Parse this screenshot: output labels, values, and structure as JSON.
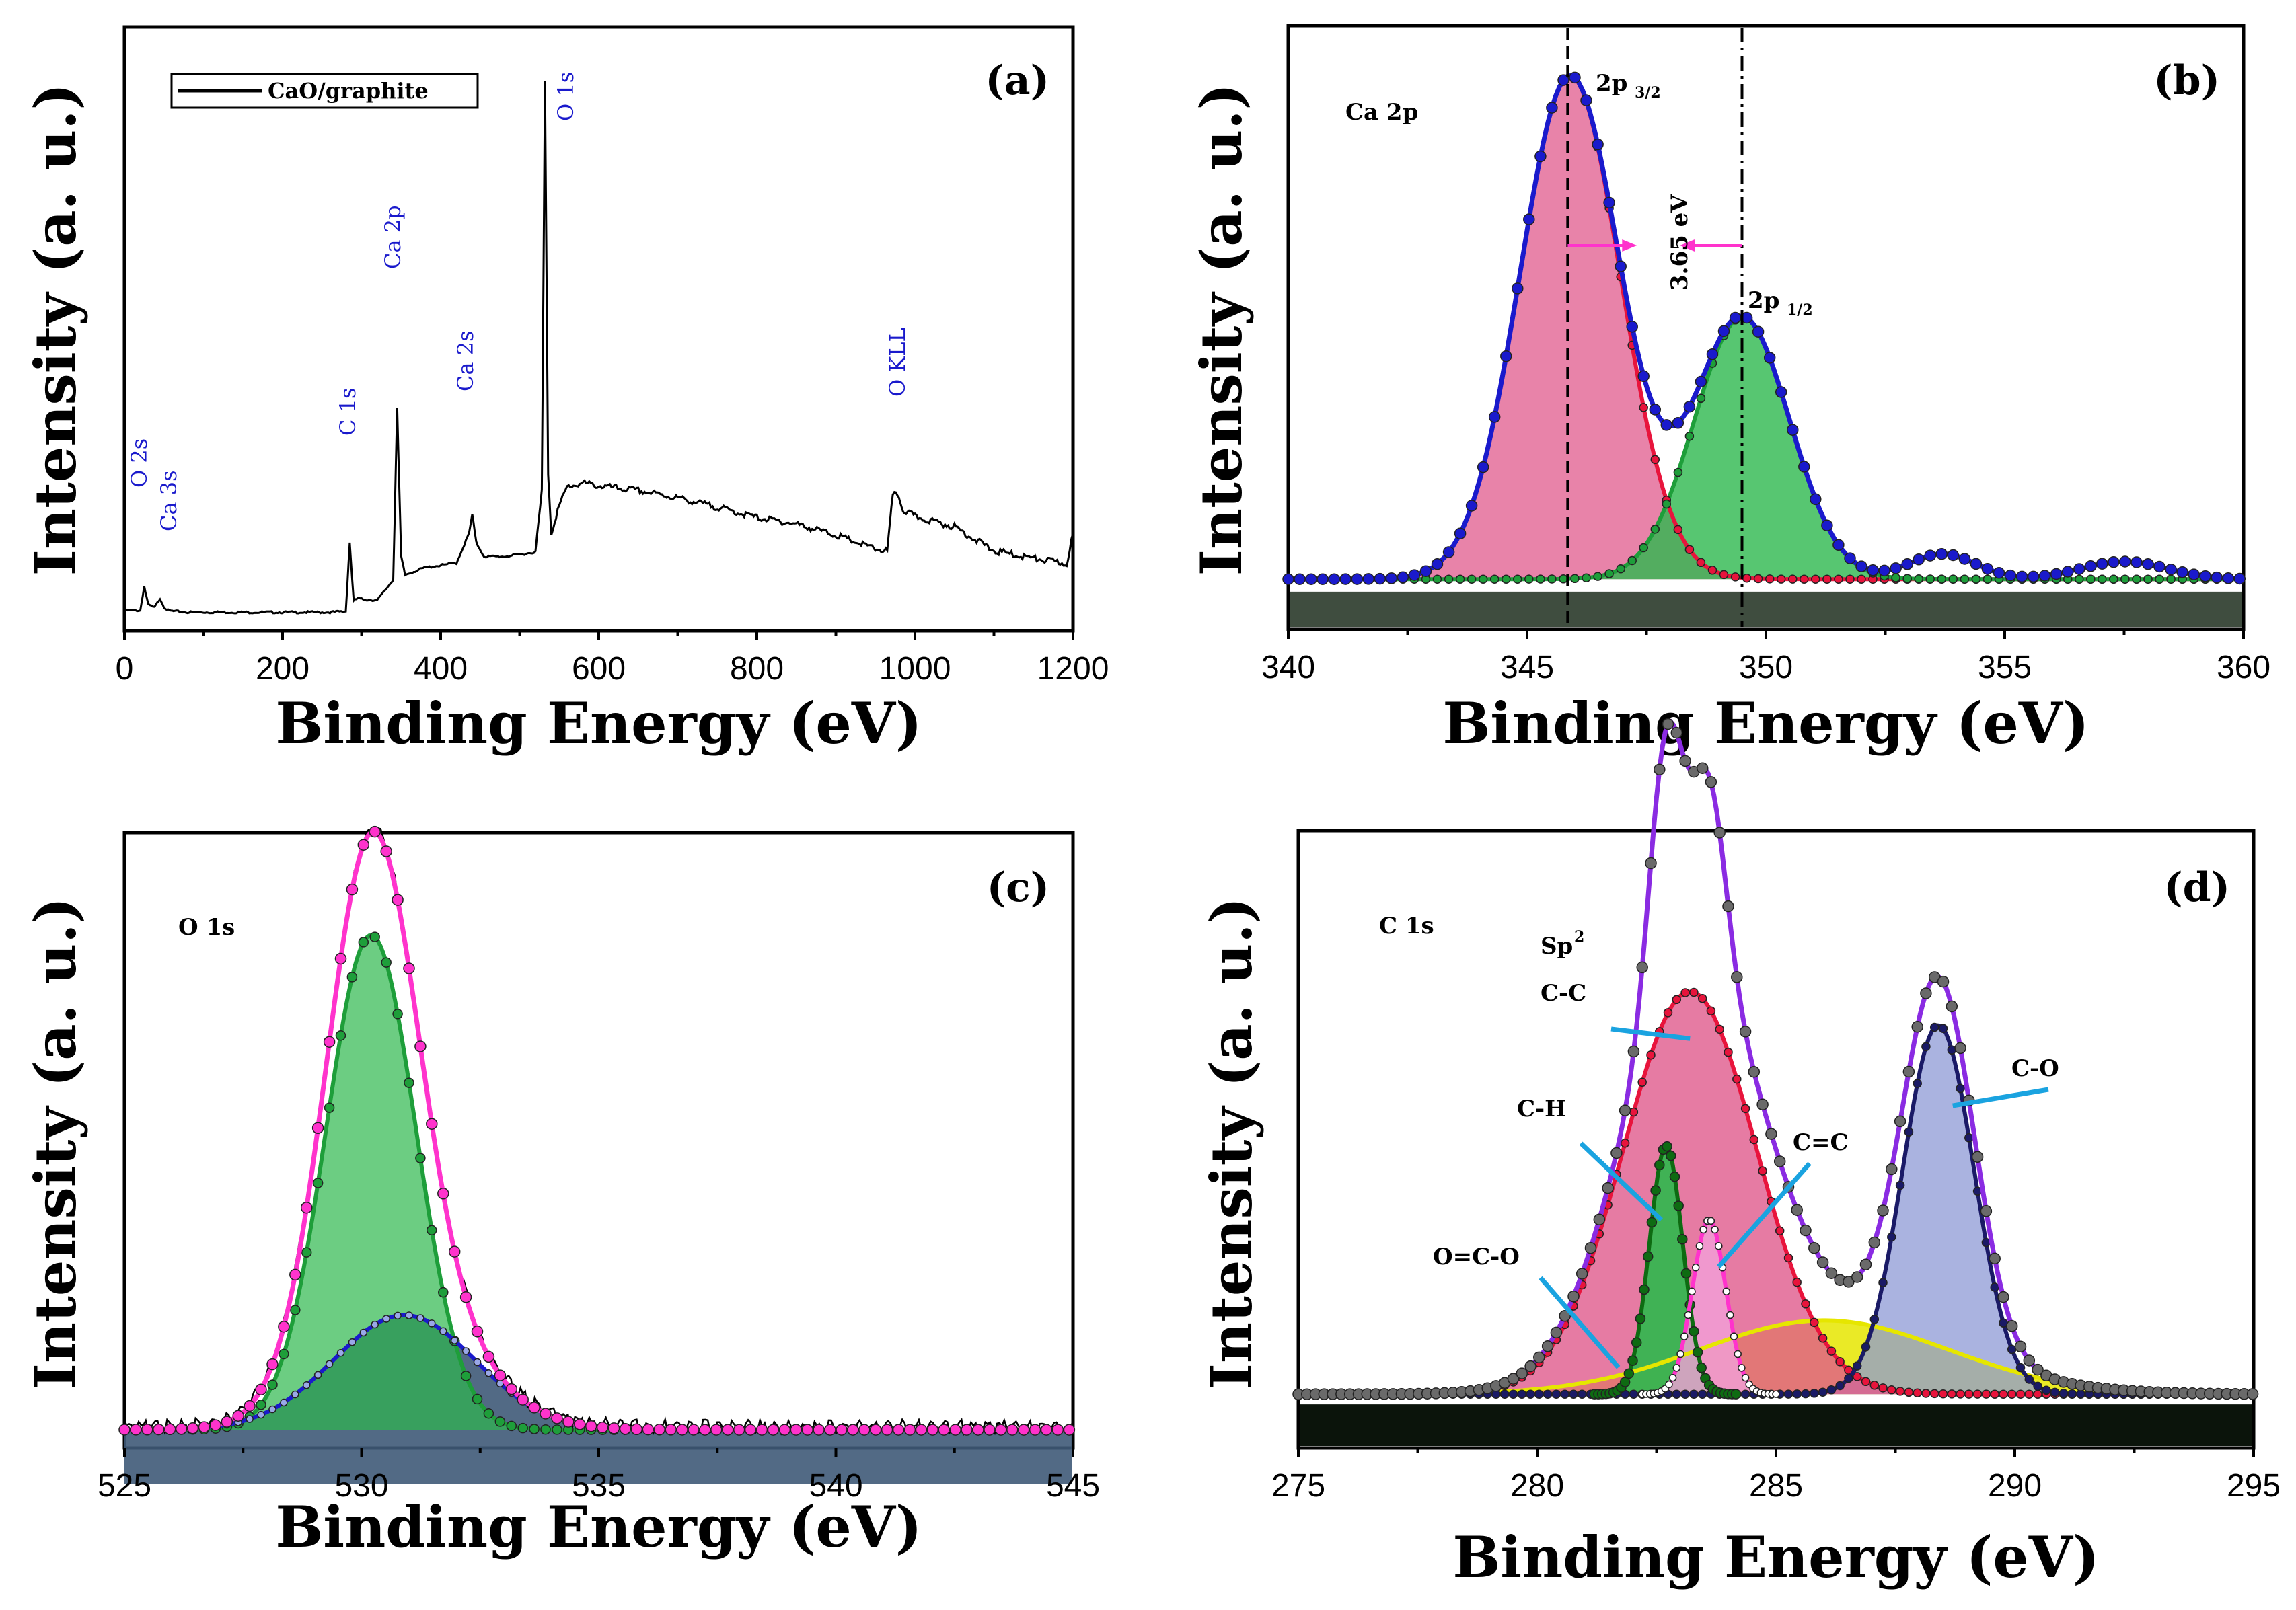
{
  "panels": {
    "a": {
      "label": "(a)",
      "ylabel": "Intensity (a. u.)",
      "xlabel": "Binding Energy (eV)",
      "legend": "CaO/graphite",
      "peaks": [
        "O 2s",
        "Ca 3s",
        "C 1s",
        "Ca 2p",
        "Ca 2s",
        "O 1s",
        "O KLL"
      ]
    },
    "b": {
      "label": "(b)",
      "ylabel": "Intensity (a. u.)",
      "xlabel": "Binding Energy (eV)",
      "region": "Ca 2p",
      "p32": "2p",
      "p32_sub": "3/2",
      "p12": "2p",
      "p12_sub": "1/2",
      "splitting": "3.65 eV"
    },
    "c": {
      "label": "(c)",
      "ylabel": "Intensity (a. u.)",
      "xlabel": "Binding Energy (eV)",
      "region": "O 1s"
    },
    "d": {
      "label": "(d)",
      "ylabel": "Intensity (a. u.)",
      "xlabel": "Binding Energy (eV)",
      "region": "C 1s",
      "sp2_a": "Sp",
      "sp2_sup": "2",
      "sp2_b": "C-C",
      "ch": "C-H",
      "cc": "C=C",
      "oco": "O=C-O",
      "co": "C-O"
    }
  },
  "colors": {
    "black": "#000000",
    "blue": "#1a1acc",
    "red": "#e8143c",
    "pink_fill": "#e05a8c",
    "green": "#1e9e3a",
    "green_fill": "#2db84d",
    "magenta": "#ff33cc",
    "purple": "#8a2be2",
    "navy": "#1a1a66",
    "navy_fill": "#8e9ad6",
    "yellow": "#e6e600",
    "darkgreen": "#0e6b12",
    "slate_fill": "#3f5a78",
    "dark_fill": "#2a3a2a",
    "cyan": "#1aa3e0"
  },
  "chart_data": [
    {
      "id": "a",
      "type": "line",
      "title": "(a)",
      "xlabel": "Binding Energy (eV)",
      "ylabel": "Intensity (a. u.)",
      "xlim": [
        0,
        1200
      ],
      "xticks": [
        0,
        200,
        400,
        600,
        800,
        1000,
        1200
      ],
      "series": [
        {
          "name": "CaO/graphite",
          "x": [
            0,
            20,
            25,
            30,
            38,
            45,
            50,
            55,
            62,
            80,
            120,
            200,
            260,
            280,
            285,
            290,
            295,
            300,
            320,
            340,
            345,
            350,
            355,
            360,
            380,
            420,
            436,
            440,
            445,
            455,
            480,
            500,
            520,
            528,
            532,
            536,
            540,
            548,
            560,
            580,
            600,
            650,
            700,
            750,
            800,
            850,
            900,
            950,
            965,
            972,
            978,
            985,
            1000,
            1050,
            1100,
            1150,
            1180,
            1192,
            1200
          ],
          "y": [
            2.2,
            2.2,
            4.8,
            2.8,
            2.5,
            3.5,
            2.6,
            2.2,
            2.1,
            2.0,
            2.0,
            2.0,
            2.0,
            2.1,
            9.5,
            3.2,
            3.5,
            3.4,
            3.3,
            5.5,
            24,
            8,
            6,
            6.2,
            6.8,
            7.3,
            10.5,
            12.5,
            9.5,
            8.0,
            8.0,
            8.2,
            8.5,
            15,
            59,
            17,
            10.5,
            13,
            15.5,
            15.9,
            15.6,
            15.1,
            14.3,
            13.3,
            12.2,
            11.5,
            10.3,
            8.8,
            8.6,
            14.5,
            14.8,
            13.0,
            12.3,
            11.2,
            8.6,
            7.8,
            7.4,
            7.2,
            10.5
          ]
        }
      ],
      "annotations": [
        "O 2s",
        "Ca 3s",
        "C 1s",
        "Ca 2p",
        "Ca 2s",
        "O 1s",
        "O KLL"
      ]
    },
    {
      "id": "b",
      "type": "area",
      "title": "(b)",
      "xlabel": "Binding Energy (eV)",
      "ylabel": "Intensity (a. u.)",
      "xlim": [
        340,
        360
      ],
      "xticks": [
        340,
        345,
        350,
        355,
        360
      ],
      "baseline": 1.0,
      "components": [
        {
          "name": "2p3/2",
          "center": 345.9,
          "height": 10.0,
          "sigma": 1.05
        },
        {
          "name": "2p1/2",
          "center": 349.5,
          "height": 5.2,
          "sigma": 1.0
        },
        {
          "name": "satellite 1",
          "center": 353.7,
          "height": 0.5,
          "sigma": 0.7
        },
        {
          "name": "satellite 2",
          "center": 357.5,
          "height": 0.35,
          "sigma": 0.9
        }
      ],
      "reference_lines": [
        345.85,
        349.5
      ],
      "splitting_eV": 3.65
    },
    {
      "id": "c",
      "type": "area",
      "title": "(c)",
      "xlabel": "Binding Energy (eV)",
      "ylabel": "Intensity (a. u.)",
      "xlim": [
        525,
        545
      ],
      "xticks": [
        525,
        530,
        535,
        540,
        545
      ],
      "baseline": 0.3,
      "components": [
        {
          "name": "component 1",
          "center": 530.2,
          "height": 8.2,
          "sigma": 0.95
        },
        {
          "name": "component 2",
          "center": 530.9,
          "height": 1.9,
          "sigma": 1.5
        }
      ]
    },
    {
      "id": "d",
      "type": "area",
      "title": "(d)",
      "xlabel": "Binding Energy (eV)",
      "ylabel": "Intensity (a. u.)",
      "xlim": [
        275,
        295
      ],
      "xticks": [
        275,
        280,
        285,
        290,
        295
      ],
      "baseline": 0.2,
      "components": [
        {
          "name": "Sp2 C-C",
          "center": 283.2,
          "height": 6.0,
          "sigma": 1.4
        },
        {
          "name": "C-H",
          "center": 282.7,
          "height": 3.7,
          "sigma": 0.35
        },
        {
          "name": "C=C",
          "center": 283.6,
          "height": 2.6,
          "sigma": 0.35
        },
        {
          "name": "O=C-O",
          "center": 286.0,
          "height": 1.1,
          "sigma": 2.6
        },
        {
          "name": "C-O",
          "center": 288.4,
          "height": 5.5,
          "sigma": 0.75
        }
      ]
    }
  ]
}
